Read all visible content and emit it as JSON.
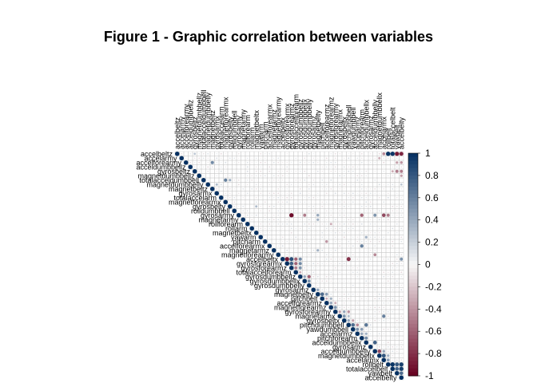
{
  "title": "Figure 1 - Graphic correlation between variables",
  "chart_data": {
    "type": "heatmap",
    "variables": [
      "accelbeltz",
      "accelarmy",
      "accelforearmy",
      "acceldumbbellz",
      "gyrosbeltz",
      "magnetdumbbellz",
      "totalacceldumbbell",
      "magnetdumbbelly",
      "magnetbeltz",
      "gyrosarmx",
      "totalaccelarm",
      "magnetforearmx",
      "gyrosbelty",
      "rolldumbbell",
      "gyrosarmy",
      "magnetarmy",
      "rollforearm",
      "rollarm",
      "magnetbeltx",
      "yawarm",
      "pitcharm",
      "accelforearmx",
      "magnetarmz",
      "magnetforearmy",
      "accelbeltx",
      "gyrosforearmx",
      "gyrosforearmz",
      "totalaccelforearm",
      "gyrosdumbbellz",
      "gyrosdumbbellx",
      "gyrosdumbbelly",
      "gyrosarmz",
      "magnetbelty",
      "pitchbelt",
      "accelforearmz",
      "magnetforearmz",
      "gyrosforearmy",
      "magnetarmx",
      "gyrosbeltx",
      "pitchdumbbell",
      "yawdumbbell",
      "accelarmz",
      "pitchforearm",
      "acceldumbbellx",
      "gyrosarmz",
      "acceldumbbelly",
      "magnetdumbbellx",
      "accelarmx",
      "rollbelt",
      "totalaccelbelt",
      "yawbelt",
      "accelbelty"
    ],
    "legend_ticks": [
      "1",
      "0.8",
      "0.6",
      "0.4",
      "0.2",
      "0",
      "-0.2",
      "-0.4",
      "-0.6",
      "-0.8",
      "-1"
    ],
    "color_range": [
      -1,
      1
    ],
    "colors": {
      "negative": "#67001F",
      "mid": "#F7F7F7",
      "positive": "#053061"
    },
    "layout": "upper",
    "method": "circle",
    "notable_correlations": [
      {
        "row": "accelbeltz",
        "col": "rollbelt",
        "value": 0.98
      },
      {
        "row": "accelbeltz",
        "col": "totalaccelbelt",
        "value": 0.97
      },
      {
        "row": "accelbeltz",
        "col": "yawbelt",
        "value": -0.9
      },
      {
        "row": "accelbeltz",
        "col": "accelbelty",
        "value": -0.85
      },
      {
        "row": "accelbeltz",
        "col": "accelarmx",
        "value": -0.45
      },
      {
        "row": "accelbeltz",
        "col": "gyrosbeltz",
        "value": 0.25
      },
      {
        "row": "accelarmy",
        "col": "magnetdumbbellx",
        "value": -0.3
      },
      {
        "row": "accelforearmy",
        "col": "magnetbeltz",
        "value": 0.55
      },
      {
        "row": "accelforearmy",
        "col": "accelbelty",
        "value": -0.4
      },
      {
        "row": "accelforearmy",
        "col": "yawbelt",
        "value": -0.35
      },
      {
        "row": "gyrosbeltz",
        "col": "accelbelty",
        "value": -0.5
      },
      {
        "row": "gyrosbeltz",
        "col": "yawbelt",
        "value": -0.5
      },
      {
        "row": "gyrosbeltz",
        "col": "totalaccelbelt",
        "value": -0.3
      },
      {
        "row": "magnetdumbbellz",
        "col": "accelbelty",
        "value": -0.35
      },
      {
        "row": "totalacceldumbbell",
        "col": "magnetforearmx",
        "value": 0.6
      },
      {
        "row": "totalacceldumbbell",
        "col": "gyrosbelty",
        "value": 0.35
      },
      {
        "row": "magnetdumbbelly",
        "col": "gyrosarmx",
        "value": 0.3
      },
      {
        "row": "magnetdumbbelly",
        "col": "accelbelty",
        "value": 0.25
      },
      {
        "row": "gyrosarmy",
        "col": "gyrosforearmz",
        "value": -0.95
      },
      {
        "row": "gyrosarmy",
        "col": "gyrosdumbbellx",
        "value": -0.5
      },
      {
        "row": "gyrosarmy",
        "col": "magnetbelty",
        "value": 0.4
      },
      {
        "row": "gyrosarmy",
        "col": "pitchforearm",
        "value": -0.6
      },
      {
        "row": "gyrosarmy",
        "col": "acceldumbbelly",
        "value": 0.5
      },
      {
        "row": "gyrosarmy",
        "col": "accelarmx",
        "value": -0.7
      },
      {
        "row": "gyrosarmy",
        "col": "rollbelt",
        "value": -0.5
      },
      {
        "row": "magnetarmy",
        "col": "magnetbelty",
        "value": 0.35
      },
      {
        "row": "rollforearm",
        "col": "magnetforearmz",
        "value": -0.3
      },
      {
        "row": "magnetbeltx",
        "col": "gyrosbelty",
        "value": 0.3
      },
      {
        "row": "yawarm",
        "col": "acceldumbbellx",
        "value": 0.35
      },
      {
        "row": "pitcharm",
        "col": "accelforearmz",
        "value": -0.4
      },
      {
        "row": "accelforearmx",
        "col": "pitchforearm",
        "value": 0.6
      },
      {
        "row": "magnetarmz",
        "col": "magnetbelty",
        "value": 0.35
      },
      {
        "row": "magnetforearmy",
        "col": "acceldumbbelly",
        "value": -0.45
      },
      {
        "row": "accelbeltx",
        "col": "gyrosforearmx",
        "value": -0.9
      },
      {
        "row": "accelbeltx",
        "col": "gyrosforearmz",
        "value": 0.85
      },
      {
        "row": "accelbeltx",
        "col": "totalaccelforearm",
        "value": -0.6
      },
      {
        "row": "accelbeltx",
        "col": "gyrosdumbbellz",
        "value": 0.55
      },
      {
        "row": "accelbeltx",
        "col": "pitchdumbbell",
        "value": -0.8
      },
      {
        "row": "accelbeltx",
        "col": "accelbelty",
        "value": 0.5
      },
      {
        "row": "gyrosforearmx",
        "col": "gyrosforearmz",
        "value": 0.75
      },
      {
        "row": "gyrosforearmx",
        "col": "totalaccelforearm",
        "value": -0.6
      },
      {
        "row": "gyrosforearmx",
        "col": "gyrosdumbbellz",
        "value": 0.55
      },
      {
        "row": "gyrosforearmz",
        "col": "totalaccelforearm",
        "value": -0.5
      },
      {
        "row": "gyrosforearmz",
        "col": "gyrosdumbbellz",
        "value": 0.5
      },
      {
        "row": "totalaccelforearm",
        "col": "gyrosdumbbellz",
        "value": -0.3
      },
      {
        "row": "gyrosdumbbellz",
        "col": "gyrosdumbbellx",
        "value": 0.4
      },
      {
        "row": "gyrosdumbbellz",
        "col": "gyrosdumbbelly",
        "value": -0.6
      },
      {
        "row": "gyrosdumbbellx",
        "col": "gyrosdumbbelly",
        "value": 0.5
      },
      {
        "row": "gyrosarmz",
        "col": "magnetbelty",
        "value": 0.4
      },
      {
        "row": "magnetbelty",
        "col": "pitchbelt",
        "value": 0.7
      },
      {
        "row": "magnetbelty",
        "col": "accelforearmz",
        "value": 0.45
      },
      {
        "row": "pitchbelt",
        "col": "accelforearmz",
        "value": -0.3
      },
      {
        "row": "pitchbelt",
        "col": "magnetforearmz",
        "value": 0.35
      },
      {
        "row": "accelforearmz",
        "col": "magnetforearmz",
        "value": 0.4
      },
      {
        "row": "accelforearmz",
        "col": "gyrosforearmy",
        "value": -0.3
      },
      {
        "row": "magnetforearmz",
        "col": "gyrosforearmy",
        "value": 0.5
      },
      {
        "row": "gyrosforearmy",
        "col": "magnetarmx",
        "value": -0.35
      },
      {
        "row": "gyrosforearmy",
        "col": "gyrosbeltx",
        "value": 0.4
      },
      {
        "row": "gyrosforearmy",
        "col": "pitchdumbbell",
        "value": -0.4
      },
      {
        "row": "magnetarmx",
        "col": "gyrosbeltx",
        "value": 0.5
      },
      {
        "row": "magnetarmx",
        "col": "pitchdumbbell",
        "value": 0.3
      },
      {
        "row": "magnetarmx",
        "col": "accelarmx",
        "value": 0.6
      },
      {
        "row": "gyrosbeltx",
        "col": "pitchdumbbell",
        "value": 0.4
      },
      {
        "row": "gyrosbeltx",
        "col": "yawdumbbell",
        "value": -0.35
      },
      {
        "row": "pitchdumbbell",
        "col": "yawdumbbell",
        "value": 0.7
      },
      {
        "row": "pitchdumbbell",
        "col": "accelarmz",
        "value": -0.45
      },
      {
        "row": "pitchdumbbell",
        "col": "acceldumbbellx",
        "value": 0.65
      },
      {
        "row": "yawdumbbell",
        "col": "accelarmz",
        "value": 0.5
      },
      {
        "row": "yawdumbbell",
        "col": "pitchforearm",
        "value": 0.45
      },
      {
        "row": "accelarmz",
        "col": "pitchforearm",
        "value": 0.4
      },
      {
        "row": "accelarmz",
        "col": "acceldumbbellx",
        "value": 0.35
      },
      {
        "row": "pitchforearm",
        "col": "acceldumbbellx",
        "value": 0.55
      },
      {
        "row": "acceldumbbellx",
        "col": "acceldumbbelly",
        "value": 0.75
      },
      {
        "row": "acceldumbbelly",
        "col": "magnetdumbbellx",
        "value": -0.7
      },
      {
        "row": "acceldumbbelly",
        "col": "accelarmx",
        "value": 0.4
      },
      {
        "row": "magnetdumbbellx",
        "col": "accelarmx",
        "value": 0.8
      },
      {
        "row": "magnetdumbbellx",
        "col": "rollbelt",
        "value": 0.35
      },
      {
        "row": "accelarmx",
        "col": "rollbelt",
        "value": 0.45
      },
      {
        "row": "rollbelt",
        "col": "totalaccelbelt",
        "value": 0.98
      },
      {
        "row": "rollbelt",
        "col": "yawbelt",
        "value": 0.8
      },
      {
        "row": "rollbelt",
        "col": "accelbelty",
        "value": 0.92
      },
      {
        "row": "totalaccelbelt",
        "col": "yawbelt",
        "value": 0.75
      },
      {
        "row": "totalaccelbelt",
        "col": "accelbelty",
        "value": 0.93
      },
      {
        "row": "yawbelt",
        "col": "accelbelty",
        "value": 0.7
      }
    ]
  }
}
